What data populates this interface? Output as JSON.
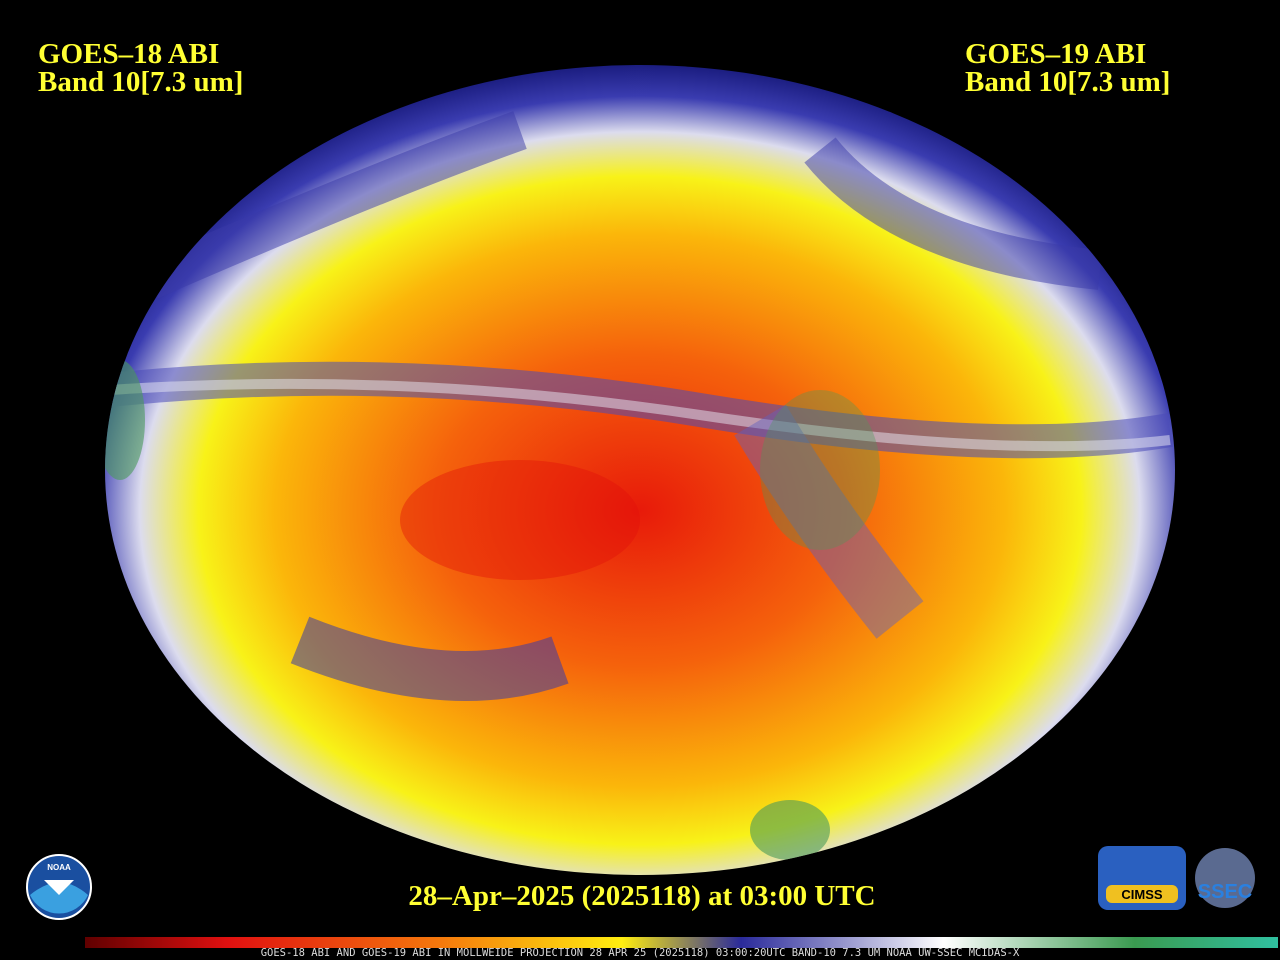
{
  "labels": {
    "left_title": "GOES–18 ABI",
    "left_band": "Band 10[7.3 um]",
    "right_title": "GOES–19 ABI",
    "right_band": "Band 10[7.3 um]",
    "timestamp": "28–Apr–2025 (2025118) at 03:00 UTC",
    "footer": "GOES-18 ABI AND GOES-19 ABI IN MOLLWEIDE PROJECTION 28 APR 25 (2025118) 03:00:20UTC BAND-10 7.3 UM NOAA UW-SSEC MCIDAS-X",
    "noaa": "NOAA",
    "cimss": "CIMSS",
    "ssec": "SSEC"
  }
}
